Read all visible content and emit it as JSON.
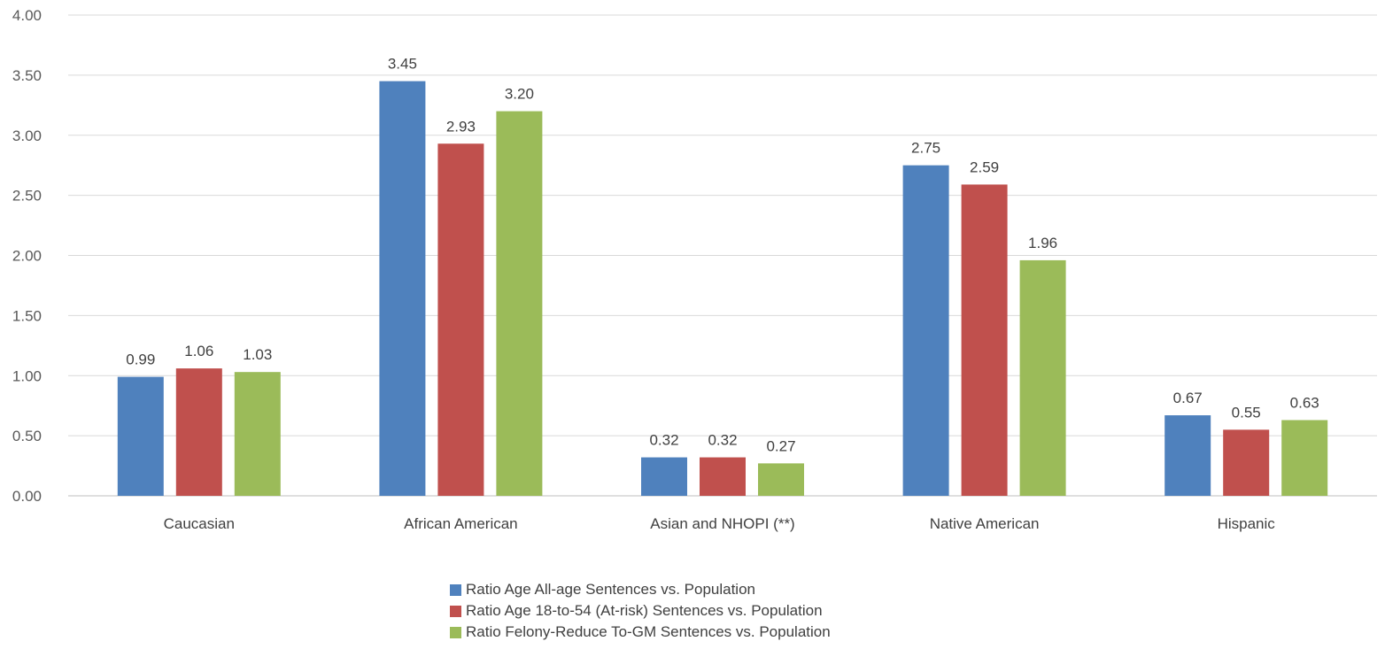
{
  "chart_data": {
    "type": "bar",
    "categories": [
      "Caucasian",
      "African American",
      "Asian and NHOPI (**)",
      "Native American",
      "Hispanic"
    ],
    "series": [
      {
        "name": "Ratio Age All-age Sentences  vs. Population",
        "color": "#4F81BD",
        "values": [
          0.99,
          3.45,
          0.32,
          2.75,
          0.67
        ],
        "labels": [
          "0.99",
          "3.45",
          "0.32",
          "2.75",
          "0.67"
        ]
      },
      {
        "name": "Ratio Age 18-to-54 (At-risk) Sentences vs. Population",
        "color": "#C0504D",
        "values": [
          1.06,
          2.93,
          0.32,
          2.59,
          0.55
        ],
        "labels": [
          "1.06",
          "2.93",
          "0.32",
          "2.59",
          "0.55"
        ]
      },
      {
        "name": "Ratio Felony-Reduce To-GM Sentences vs. Population",
        "color": "#9BBB59",
        "values": [
          1.03,
          3.2,
          0.27,
          1.96,
          0.63
        ],
        "labels": [
          "1.03",
          "3.20",
          "0.27",
          "1.96",
          "0.63"
        ]
      }
    ],
    "yticks": [
      "0.00",
      "0.50",
      "1.00",
      "1.50",
      "2.00",
      "2.50",
      "3.00",
      "3.50",
      "4.00"
    ],
    "ylim": [
      0,
      4
    ],
    "grid": true,
    "legend_position": "bottom"
  }
}
